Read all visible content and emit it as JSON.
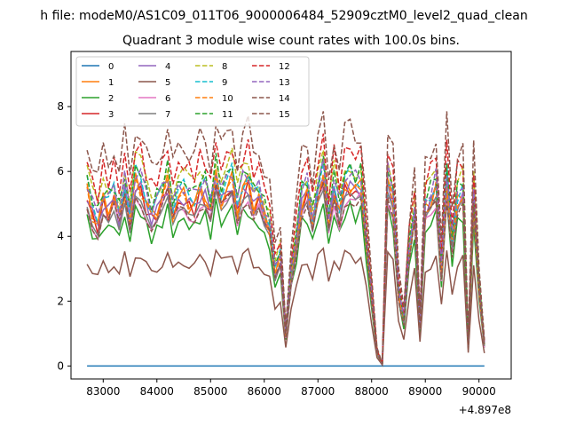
{
  "chart_data": {
    "type": "line",
    "suptitle": "h file: modeM0/AS1C09_011T06_9000006484_52909cztM0_level2_quad_clean",
    "title": "Quadrant 3 module wise count rates with 100.0s bins.",
    "xlabel": "",
    "ylabel": "",
    "offset_text": "+4.897e8",
    "xlim": [
      82400,
      90600
    ],
    "ylim": [
      -0.4,
      9.7
    ],
    "xticks": [
      83000,
      84000,
      85000,
      86000,
      87000,
      88000,
      89000,
      90000
    ],
    "xtick_labels": [
      "83000",
      "84000",
      "85000",
      "86000",
      "87000",
      "88000",
      "89000",
      "90000"
    ],
    "yticks": [
      0,
      2,
      4,
      6,
      8
    ],
    "ytick_labels": [
      "0",
      "2",
      "4",
      "6",
      "8"
    ],
    "legend_position": "top-left",
    "legend_columns": 4,
    "colors": [
      "#1f77b4",
      "#ff7f0e",
      "#2ca02c",
      "#d62728",
      "#9467bd",
      "#8c564b",
      "#e377c2",
      "#7f7f7f",
      "#bcbd22",
      "#17becf",
      "#ff7f0e",
      "#2ca02c",
      "#d62728",
      "#9467bd",
      "#8c564b",
      "#8c564b"
    ],
    "x": [
      82700,
      82800,
      82900,
      83000,
      83100,
      83200,
      83300,
      83400,
      83500,
      83600,
      83700,
      83800,
      83900,
      84000,
      84100,
      84200,
      84300,
      84400,
      84500,
      84600,
      84700,
      84800,
      84900,
      85000,
      85100,
      85200,
      85300,
      85400,
      85500,
      85600,
      85700,
      85800,
      85900,
      86000,
      86100,
      86200,
      86300,
      86400,
      86500,
      86600,
      86700,
      86800,
      86900,
      87000,
      87100,
      87200,
      87300,
      87400,
      87500,
      87600,
      87700,
      87800,
      87900,
      88000,
      88100,
      88200,
      88300,
      88400,
      88500,
      88600,
      88700,
      88800,
      88900,
      89000,
      89100,
      89200,
      89300,
      89400,
      89500,
      89600,
      89700,
      89800,
      89900,
      90000,
      90100
    ],
    "base_profile": [
      1.0,
      0.88,
      0.82,
      0.95,
      0.9,
      0.97,
      0.85,
      1.02,
      0.83,
      1.06,
      1.03,
      0.94,
      0.86,
      0.9,
      0.97,
      1.05,
      0.88,
      0.96,
      0.98,
      0.94,
      0.93,
      1.0,
      0.99,
      0.89,
      1.08,
      0.96,
      1.0,
      1.07,
      0.9,
      1.02,
      1.05,
      0.93,
      0.97,
      0.86,
      0.8,
      0.52,
      0.62,
      0.18,
      0.52,
      0.72,
      0.95,
      1.0,
      0.82,
      1.0,
      1.07,
      0.82,
      1.02,
      0.88,
      1.03,
      1.05,
      1.01,
      1.03,
      0.72,
      0.38,
      0.08,
      0.01,
      1.05,
      0.95,
      0.42,
      0.26,
      0.65,
      0.88,
      0.22,
      0.9,
      0.95,
      1.02,
      0.55,
      1.07,
      0.7,
      0.95,
      1.0,
      0.12,
      0.96,
      0.45,
      0.12
    ],
    "series": [
      {
        "name": "0",
        "style": "solid",
        "scale": 0.0
      },
      {
        "name": "1",
        "style": "solid",
        "scale": 5.4
      },
      {
        "name": "2",
        "style": "solid",
        "scale": 4.6
      },
      {
        "name": "3",
        "style": "solid",
        "scale": 5.2
      },
      {
        "name": "4",
        "style": "solid",
        "scale": 5.3
      },
      {
        "name": "5",
        "style": "solid",
        "scale": 3.3
      },
      {
        "name": "6",
        "style": "solid",
        "scale": 5.0
      },
      {
        "name": "7",
        "style": "solid",
        "scale": 4.9
      },
      {
        "name": "8",
        "style": "dashed",
        "scale": 6.0
      },
      {
        "name": "9",
        "style": "dashed",
        "scale": 5.6
      },
      {
        "name": "10",
        "style": "dashed",
        "scale": 5.3
      },
      {
        "name": "11",
        "style": "dashed",
        "scale": 5.8
      },
      {
        "name": "12",
        "style": "dashed",
        "scale": 6.4
      },
      {
        "name": "13",
        "style": "dashed",
        "scale": 5.7
      },
      {
        "name": "14",
        "style": "dashed",
        "scale": 7.0
      },
      {
        "name": "15",
        "style": "dashed",
        "scale": 5.0
      }
    ]
  }
}
